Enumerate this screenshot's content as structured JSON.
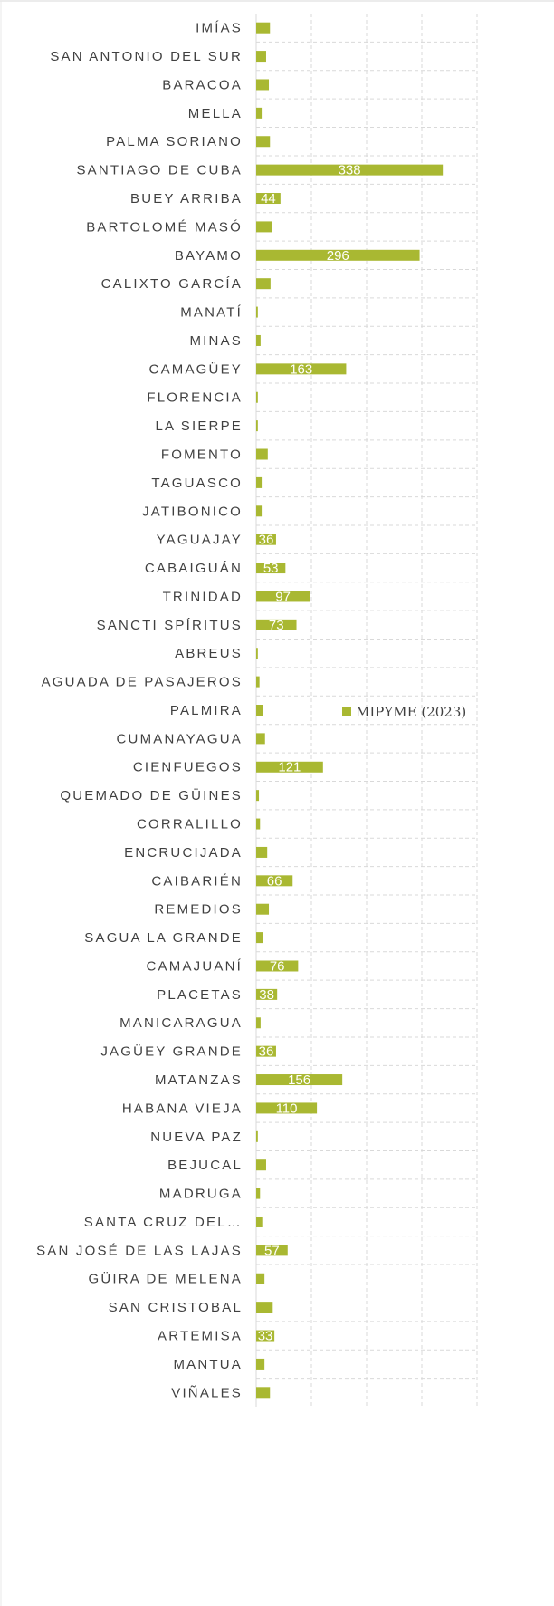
{
  "chart_data": {
    "type": "bar",
    "orientation": "horizontal",
    "color": "#a9b832",
    "categories": [
      "IMÍAS",
      "SAN ANTONIO DEL SUR",
      "BARACOA",
      "MELLA",
      "PALMA SORIANO",
      "SANTIAGO DE CUBA",
      "BUEY ARRIBA",
      "BARTOLOMÉ MASÓ",
      "BAYAMO",
      "CALIXTO GARCÍA",
      "MANATÍ",
      "MINAS",
      "CAMAGÜEY",
      "FLORENCIA",
      "LA SIERPE",
      "FOMENTO",
      "TAGUASCO",
      "JATIBONICO",
      "YAGUAJAY",
      "CABAIGUÁN",
      "TRINIDAD",
      "SANCTI SPÍRITUS",
      "ABREUS",
      "AGUADA DE PASAJEROS",
      "PALMIRA",
      "CUMANAYAGUA",
      "CIENFUEGOS",
      "QUEMADO DE GÜINES",
      "CORRALILLO",
      "ENCRUCIJADA",
      "CAIBARIÉN",
      "REMEDIOS",
      "SAGUA LA GRANDE",
      "CAMAJUANÍ",
      "PLACETAS",
      "MANICARAGUA",
      "JAGÜEY GRANDE",
      "MATANZAS",
      "HABANA VIEJA",
      "NUEVA PAZ",
      "BEJUCAL",
      "MADRUGA",
      "SANTA CRUZ DEL…",
      "SAN JOSÉ DE LAS LAJAS",
      "GÜIRA DE MELENA",
      "SAN CRISTOBAL",
      "ARTEMISA",
      "MANTUA",
      "VIÑALES"
    ],
    "series": [
      {
        "name": "MIPYME (2023)",
        "color": "#a9b832",
        "values": [
          25,
          18,
          23,
          10,
          25,
          338,
          44,
          28,
          296,
          26,
          3,
          8,
          163,
          3,
          3,
          21,
          10,
          10,
          36,
          53,
          97,
          73,
          3,
          6,
          12,
          16,
          121,
          5,
          7,
          20,
          66,
          23,
          13,
          76,
          38,
          8,
          36,
          156,
          110,
          3,
          18,
          7,
          11,
          57,
          15,
          30,
          33,
          15,
          25
        ]
      }
    ],
    "xlim": [
      0,
      400
    ],
    "xticks": [
      0,
      100,
      200,
      300,
      400
    ],
    "grid": true,
    "legend": "right"
  }
}
